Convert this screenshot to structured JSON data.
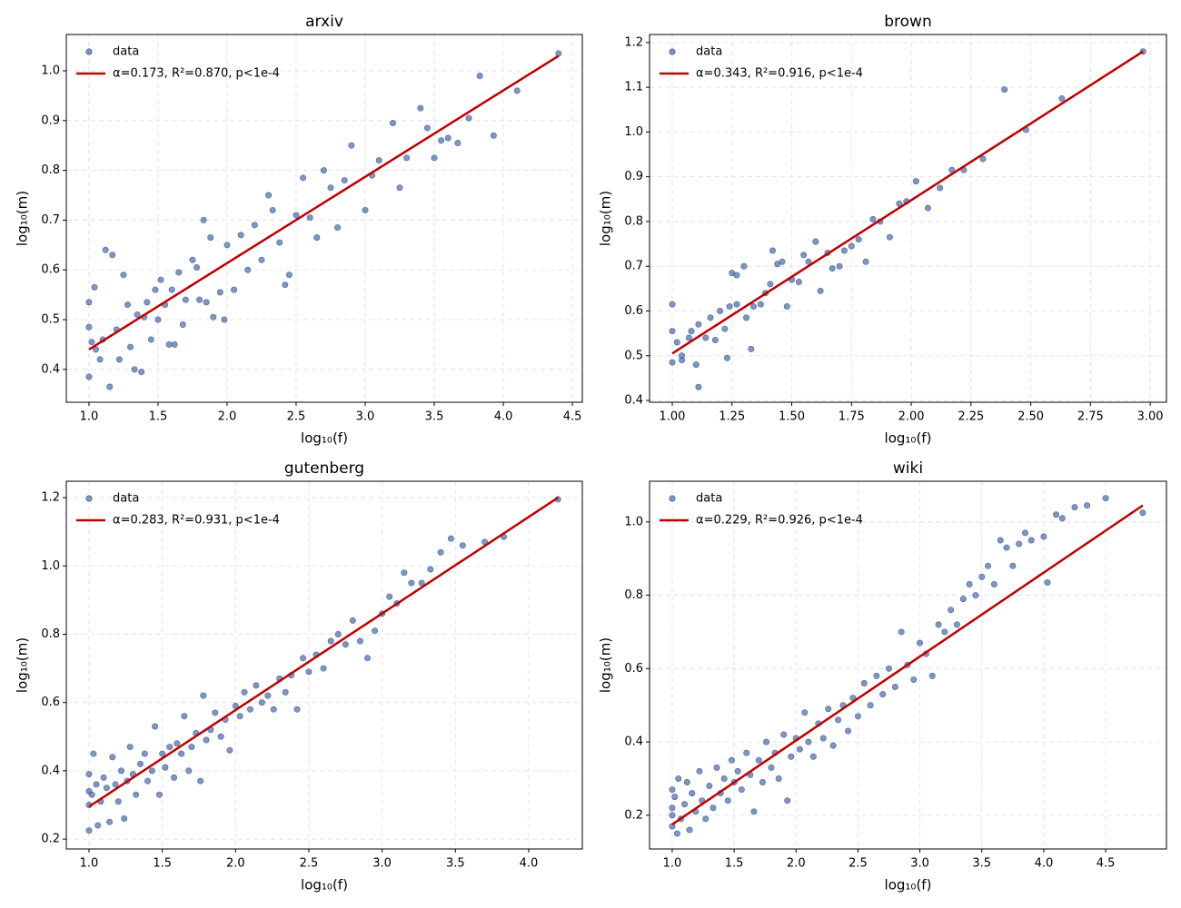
{
  "chart_data": [
    {
      "type": "scatter",
      "title": "arxiv",
      "xlabel": "log₁₀(f)",
      "ylabel": "log₁₀(m)",
      "grid": true,
      "legend": "upper left",
      "xlim": [
        0.836,
        4.572
      ],
      "ylim": [
        0.334,
        1.073
      ],
      "xticks": [
        {
          "value": 1.0,
          "label": "1.0"
        },
        1.5,
        {
          "value": 2.0,
          "label": "2.0"
        },
        2.5,
        {
          "value": 3.0,
          "label": "3.0"
        },
        3.5,
        {
          "value": 4.0,
          "label": "4.0"
        },
        4.5
      ],
      "yticks": [
        0.4,
        0.5,
        0.6,
        0.7,
        0.8,
        0.9,
        {
          "value": 1.0,
          "label": "1.0"
        }
      ],
      "series": [
        {
          "name": "data",
          "color": "#4a6aa8",
          "x": [
            1.0,
            1.0,
            1.0,
            1.02,
            1.04,
            1.05,
            1.08,
            1.1,
            1.12,
            1.15,
            1.17,
            1.2,
            1.22,
            1.25,
            1.28,
            1.3,
            1.33,
            1.35,
            1.38,
            1.4,
            1.42,
            1.45,
            1.48,
            1.5,
            1.52,
            1.55,
            1.58,
            1.6,
            1.62,
            1.65,
            1.68,
            1.7,
            1.75,
            1.78,
            1.8,
            1.83,
            1.85,
            1.88,
            1.9,
            1.95,
            1.98,
            2.0,
            2.05,
            2.1,
            2.15,
            2.2,
            2.25,
            2.3,
            2.33,
            2.38,
            2.42,
            2.45,
            2.5,
            2.55,
            2.6,
            2.65,
            2.7,
            2.75,
            2.8,
            2.85,
            2.9,
            3.0,
            3.05,
            3.1,
            3.2,
            3.25,
            3.3,
            3.4,
            3.45,
            3.5,
            3.55,
            3.6,
            3.67,
            3.75,
            3.83,
            3.93,
            4.1,
            4.4
          ],
          "values": [
            0.385,
            0.535,
            0.485,
            0.455,
            0.565,
            0.44,
            0.42,
            0.46,
            0.64,
            0.365,
            0.63,
            0.48,
            0.42,
            0.59,
            0.53,
            0.445,
            0.4,
            0.51,
            0.395,
            0.505,
            0.535,
            0.46,
            0.56,
            0.5,
            0.58,
            0.53,
            0.45,
            0.56,
            0.45,
            0.595,
            0.49,
            0.54,
            0.62,
            0.605,
            0.54,
            0.7,
            0.535,
            0.665,
            0.505,
            0.555,
            0.5,
            0.65,
            0.56,
            0.67,
            0.6,
            0.69,
            0.62,
            0.75,
            0.72,
            0.655,
            0.57,
            0.59,
            0.71,
            0.785,
            0.705,
            0.665,
            0.8,
            0.765,
            0.685,
            0.78,
            0.85,
            0.72,
            0.79,
            0.82,
            0.895,
            0.765,
            0.825,
            0.925,
            0.885,
            0.825,
            0.86,
            0.865,
            0.855,
            0.905,
            0.99,
            0.87,
            0.96,
            1.035
          ]
        },
        {
          "name": "α=0.173, R²=0.870, p<1e-4",
          "type": "line",
          "color": "#c00000",
          "x": [
            1.0,
            4.4
          ],
          "values": [
            0.44,
            1.03
          ]
        }
      ]
    },
    {
      "type": "scatter",
      "title": "brown",
      "xlabel": "log₁₀(f)",
      "ylabel": "log₁₀(m)",
      "grid": true,
      "legend": "upper left",
      "xlim": [
        0.905,
        3.068
      ],
      "ylim": [
        0.396,
        1.218
      ],
      "xticks": [
        {
          "value": 1.0,
          "label": "1.00"
        },
        1.25,
        {
          "value": 1.5,
          "label": "1.50"
        },
        1.75,
        {
          "value": 2.0,
          "label": "2.00"
        },
        2.25,
        {
          "value": 2.5,
          "label": "2.50"
        },
        2.75,
        {
          "value": 3.0,
          "label": "3.00"
        }
      ],
      "yticks": [
        0.4,
        0.5,
        0.6,
        0.7,
        0.8,
        0.9,
        {
          "value": 1.0,
          "label": "1.0"
        },
        1.1,
        1.2
      ],
      "series": [
        {
          "name": "data",
          "color": "#4a6aa8",
          "x": [
            1.0,
            1.0,
            1.0,
            1.02,
            1.04,
            1.04,
            1.07,
            1.08,
            1.1,
            1.11,
            1.11,
            1.14,
            1.16,
            1.18,
            1.2,
            1.22,
            1.23,
            1.24,
            1.25,
            1.27,
            1.27,
            1.3,
            1.31,
            1.33,
            1.34,
            1.37,
            1.39,
            1.41,
            1.42,
            1.44,
            1.46,
            1.48,
            1.5,
            1.53,
            1.55,
            1.57,
            1.6,
            1.62,
            1.65,
            1.67,
            1.7,
            1.72,
            1.75,
            1.78,
            1.81,
            1.84,
            1.87,
            1.91,
            1.95,
            1.98,
            2.02,
            2.07,
            2.12,
            2.17,
            2.22,
            2.3,
            2.39,
            2.48,
            2.63,
            2.97
          ],
          "values": [
            0.615,
            0.555,
            0.485,
            0.53,
            0.49,
            0.5,
            0.54,
            0.555,
            0.48,
            0.57,
            0.43,
            0.54,
            0.585,
            0.535,
            0.6,
            0.56,
            0.495,
            0.61,
            0.685,
            0.68,
            0.615,
            0.7,
            0.585,
            0.515,
            0.61,
            0.615,
            0.64,
            0.66,
            0.735,
            0.705,
            0.71,
            0.61,
            0.67,
            0.665,
            0.725,
            0.71,
            0.755,
            0.645,
            0.73,
            0.695,
            0.7,
            0.735,
            0.745,
            0.76,
            0.71,
            0.805,
            0.8,
            0.765,
            0.84,
            0.845,
            0.89,
            0.83,
            0.875,
            0.915,
            0.915,
            0.94,
            1.095,
            1.005,
            1.075,
            1.18
          ]
        },
        {
          "name": "α=0.343, R²=0.916, p<1e-4",
          "type": "line",
          "color": "#c00000",
          "x": [
            1.0,
            2.97
          ],
          "values": [
            0.505,
            1.18
          ]
        }
      ]
    },
    {
      "type": "scatter",
      "title": "gutenberg",
      "xlabel": "log₁₀(f)",
      "ylabel": "log₁₀(m)",
      "grid": true,
      "legend": "upper left",
      "xlim": [
        0.845,
        4.366
      ],
      "ylim": [
        0.171,
        1.248
      ],
      "xticks": [
        {
          "value": 1.0,
          "label": "1.0"
        },
        1.5,
        {
          "value": 2.0,
          "label": "2.0"
        },
        2.5,
        {
          "value": 3.0,
          "label": "3.0"
        },
        3.5,
        {
          "value": 4.0,
          "label": "4.0"
        }
      ],
      "yticks": [
        0.2,
        0.4,
        0.6,
        0.8,
        {
          "value": 1.0,
          "label": "1.0"
        },
        1.2
      ],
      "series": [
        {
          "name": "data",
          "color": "#4a6aa8",
          "x": [
            1.0,
            1.0,
            1.0,
            1.0,
            1.02,
            1.03,
            1.05,
            1.06,
            1.08,
            1.1,
            1.12,
            1.14,
            1.16,
            1.18,
            1.2,
            1.22,
            1.24,
            1.26,
            1.28,
            1.3,
            1.32,
            1.35,
            1.38,
            1.4,
            1.43,
            1.45,
            1.48,
            1.5,
            1.52,
            1.55,
            1.58,
            1.6,
            1.63,
            1.65,
            1.68,
            1.7,
            1.73,
            1.76,
            1.78,
            1.8,
            1.83,
            1.86,
            1.9,
            1.93,
            1.96,
            2.0,
            2.03,
            2.06,
            2.1,
            2.14,
            2.18,
            2.22,
            2.26,
            2.3,
            2.34,
            2.38,
            2.42,
            2.46,
            2.5,
            2.55,
            2.6,
            2.65,
            2.7,
            2.75,
            2.8,
            2.85,
            2.9,
            2.95,
            3.0,
            3.05,
            3.1,
            3.15,
            3.2,
            3.27,
            3.33,
            3.4,
            3.47,
            3.55,
            3.7,
            3.83,
            4.2
          ],
          "values": [
            0.225,
            0.3,
            0.34,
            0.39,
            0.33,
            0.45,
            0.36,
            0.24,
            0.31,
            0.38,
            0.35,
            0.25,
            0.44,
            0.36,
            0.31,
            0.4,
            0.26,
            0.37,
            0.47,
            0.39,
            0.33,
            0.42,
            0.45,
            0.37,
            0.4,
            0.53,
            0.33,
            0.45,
            0.41,
            0.47,
            0.38,
            0.48,
            0.45,
            0.56,
            0.4,
            0.47,
            0.51,
            0.37,
            0.62,
            0.49,
            0.52,
            0.57,
            0.5,
            0.55,
            0.46,
            0.59,
            0.56,
            0.63,
            0.58,
            0.65,
            0.6,
            0.62,
            0.58,
            0.67,
            0.63,
            0.68,
            0.58,
            0.73,
            0.69,
            0.74,
            0.7,
            0.78,
            0.8,
            0.77,
            0.84,
            0.78,
            0.73,
            0.81,
            0.86,
            0.91,
            0.89,
            0.98,
            0.95,
            0.95,
            0.99,
            1.04,
            1.08,
            1.06,
            1.07,
            1.085,
            1.195
          ]
        },
        {
          "name": "α=0.283, R²=0.931, p<1e-4",
          "type": "line",
          "color": "#c00000",
          "x": [
            1.0,
            4.2
          ],
          "values": [
            0.295,
            1.2
          ]
        }
      ]
    },
    {
      "type": "scatter",
      "title": "wiki",
      "xlabel": "log₁₀(f)",
      "ylabel": "log₁₀(m)",
      "grid": true,
      "legend": "upper left",
      "xlim": [
        0.817,
        4.991
      ],
      "ylim": [
        0.108,
        1.111
      ],
      "xticks": [
        {
          "value": 1.0,
          "label": "1.0"
        },
        1.5,
        {
          "value": 2.0,
          "label": "2.0"
        },
        2.5,
        {
          "value": 3.0,
          "label": "3.0"
        },
        3.5,
        {
          "value": 4.0,
          "label": "4.0"
        },
        4.5
      ],
      "yticks": [
        0.2,
        0.4,
        0.6,
        0.8,
        {
          "value": 1.0,
          "label": "1.0"
        }
      ],
      "series": [
        {
          "name": "data",
          "color": "#4a6aa8",
          "x": [
            1.0,
            1.0,
            1.0,
            1.0,
            1.02,
            1.04,
            1.05,
            1.07,
            1.1,
            1.12,
            1.14,
            1.16,
            1.19,
            1.22,
            1.24,
            1.27,
            1.3,
            1.33,
            1.36,
            1.39,
            1.42,
            1.45,
            1.48,
            1.5,
            1.53,
            1.56,
            1.6,
            1.63,
            1.66,
            1.7,
            1.73,
            1.76,
            1.8,
            1.83,
            1.86,
            1.9,
            1.93,
            1.96,
            2.0,
            2.03,
            2.07,
            2.1,
            2.14,
            2.18,
            2.22,
            2.26,
            2.3,
            2.34,
            2.38,
            2.42,
            2.46,
            2.5,
            2.55,
            2.6,
            2.65,
            2.7,
            2.75,
            2.8,
            2.85,
            2.9,
            2.95,
            3.0,
            3.05,
            3.1,
            3.15,
            3.2,
            3.25,
            3.3,
            3.35,
            3.4,
            3.45,
            3.5,
            3.55,
            3.6,
            3.65,
            3.7,
            3.75,
            3.8,
            3.85,
            3.9,
            4.0,
            4.03,
            4.1,
            4.15,
            4.25,
            4.35,
            4.5,
            4.8
          ],
          "values": [
            0.17,
            0.22,
            0.27,
            0.2,
            0.25,
            0.15,
            0.3,
            0.19,
            0.23,
            0.29,
            0.16,
            0.26,
            0.21,
            0.32,
            0.24,
            0.19,
            0.28,
            0.22,
            0.33,
            0.26,
            0.3,
            0.24,
            0.35,
            0.29,
            0.32,
            0.27,
            0.37,
            0.31,
            0.21,
            0.35,
            0.29,
            0.4,
            0.33,
            0.37,
            0.3,
            0.42,
            0.24,
            0.36,
            0.41,
            0.38,
            0.48,
            0.4,
            0.36,
            0.45,
            0.41,
            0.49,
            0.39,
            0.46,
            0.5,
            0.43,
            0.52,
            0.47,
            0.56,
            0.5,
            0.58,
            0.53,
            0.6,
            0.55,
            0.7,
            0.61,
            0.57,
            0.67,
            0.64,
            0.58,
            0.72,
            0.7,
            0.76,
            0.72,
            0.79,
            0.83,
            0.8,
            0.85,
            0.88,
            0.83,
            0.95,
            0.93,
            0.88,
            0.94,
            0.97,
            0.95,
            0.96,
            0.835,
            1.02,
            1.01,
            1.04,
            1.045,
            1.065,
            1.025
          ]
        },
        {
          "name": "α=0.229, R²=0.926, p<1e-4",
          "type": "line",
          "color": "#c00000",
          "x": [
            1.0,
            4.8
          ],
          "values": [
            0.175,
            1.045
          ]
        }
      ]
    }
  ]
}
